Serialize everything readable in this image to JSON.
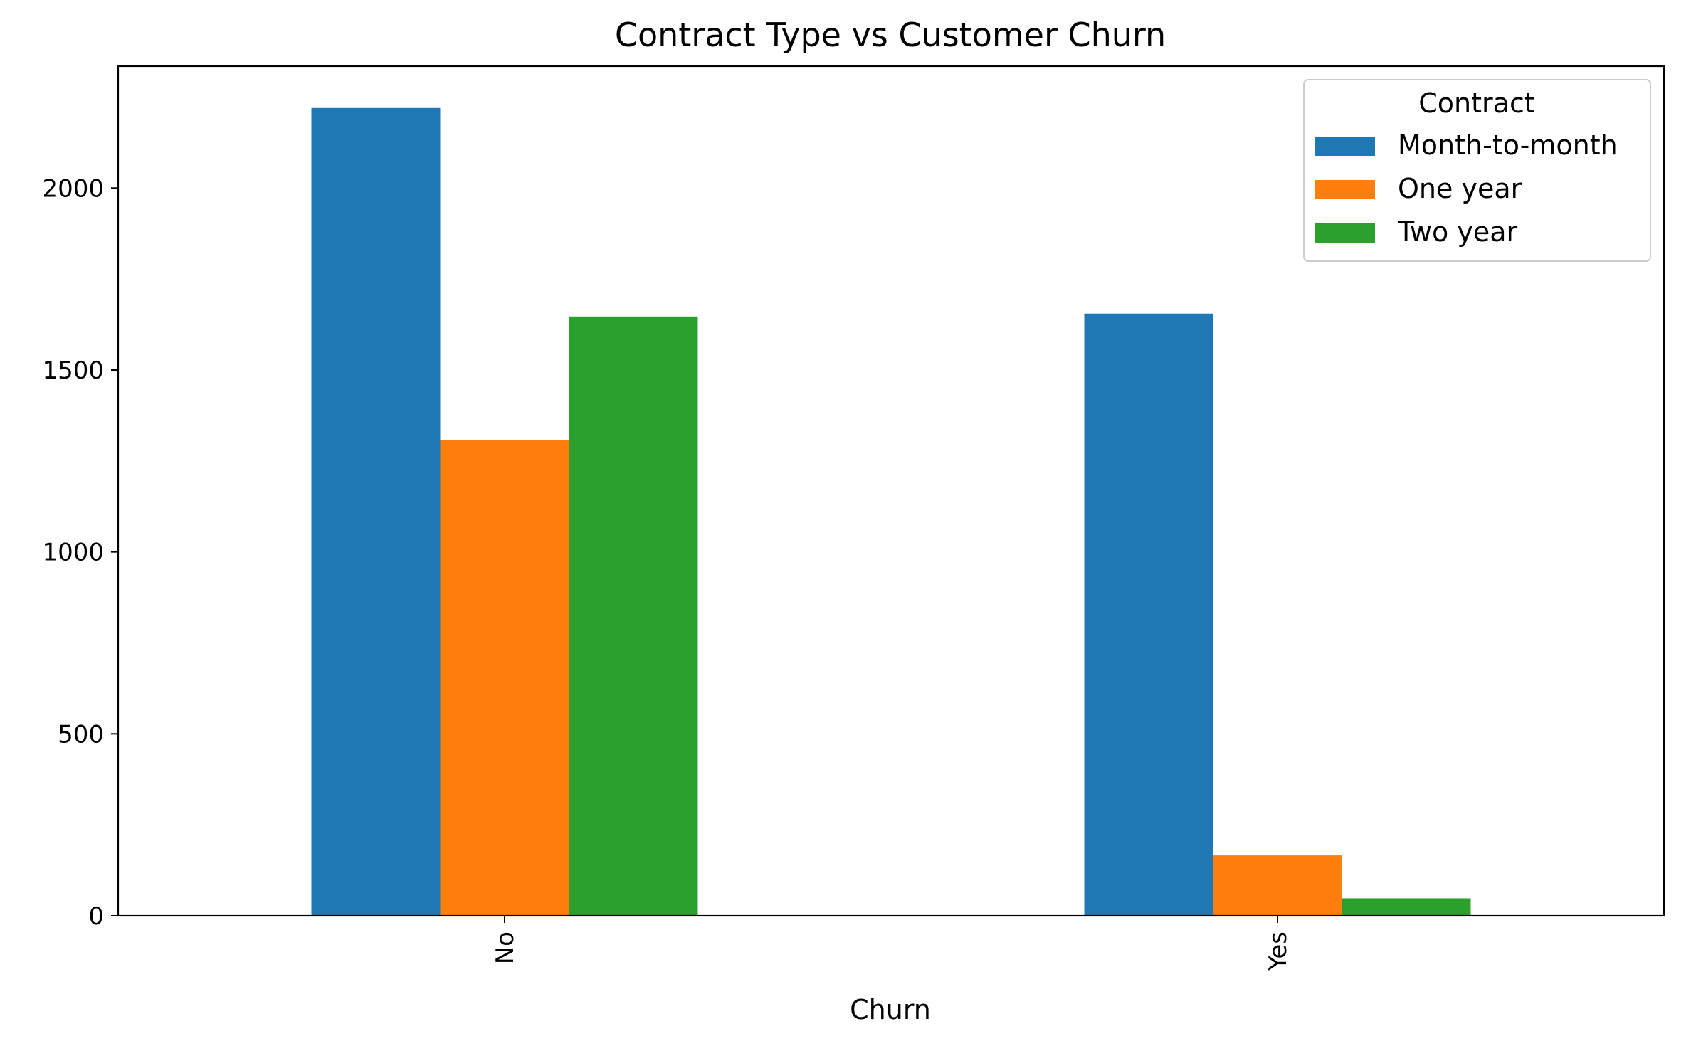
{
  "chart_data": {
    "type": "bar",
    "title": "Contract Type vs Customer Churn",
    "xlabel": "Churn",
    "ylabel": "",
    "categories": [
      "No",
      "Yes"
    ],
    "series": [
      {
        "name": "Month-to-month",
        "color": "#1f77b4",
        "values": [
          2220,
          1655
        ]
      },
      {
        "name": "One year",
        "color": "#ff7f0e",
        "values": [
          1307,
          166
        ]
      },
      {
        "name": "Two year",
        "color": "#2ca02c",
        "values": [
          1647,
          48
        ]
      }
    ],
    "ylim": [
      0,
      2335
    ],
    "yticks": [
      0,
      500,
      1000,
      1500,
      2000
    ],
    "ytick_labels": [
      "0",
      "500",
      "1000",
      "1500",
      "2000"
    ],
    "legend": {
      "title": "Contract",
      "placement": "top-right"
    },
    "grid": false
  }
}
